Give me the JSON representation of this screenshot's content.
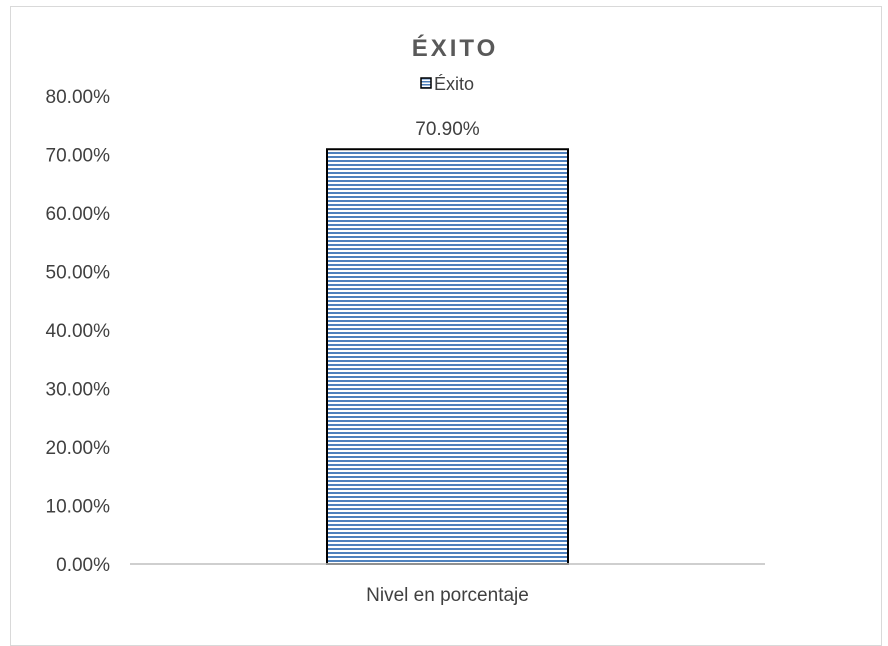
{
  "chart_data": {
    "type": "bar",
    "title": "ÉXITO",
    "categories": [
      "Nivel en porcentaje"
    ],
    "series": [
      {
        "name": "Éxito",
        "values": [
          0.709
        ]
      }
    ],
    "data_labels": [
      "70.90%"
    ],
    "ylim": [
      0,
      0.8
    ],
    "y_ticks": [
      0,
      0.1,
      0.2,
      0.3,
      0.4,
      0.5,
      0.6,
      0.7,
      0.8
    ],
    "y_tick_labels": [
      "0.00%",
      "10.00%",
      "20.00%",
      "30.00%",
      "40.00%",
      "50.00%",
      "60.00%",
      "70.00%",
      "80.00%"
    ],
    "legend_position": "top",
    "grid": false,
    "colors": {
      "bar_fill": "#4f81bd",
      "bar_stripe_bg": "#ffffff",
      "bar_border": "#000000",
      "axis_line": "#bfbfbf",
      "title_text": "#595959",
      "tick_text": "#404040",
      "frame_border": "#d9d9d9"
    }
  }
}
